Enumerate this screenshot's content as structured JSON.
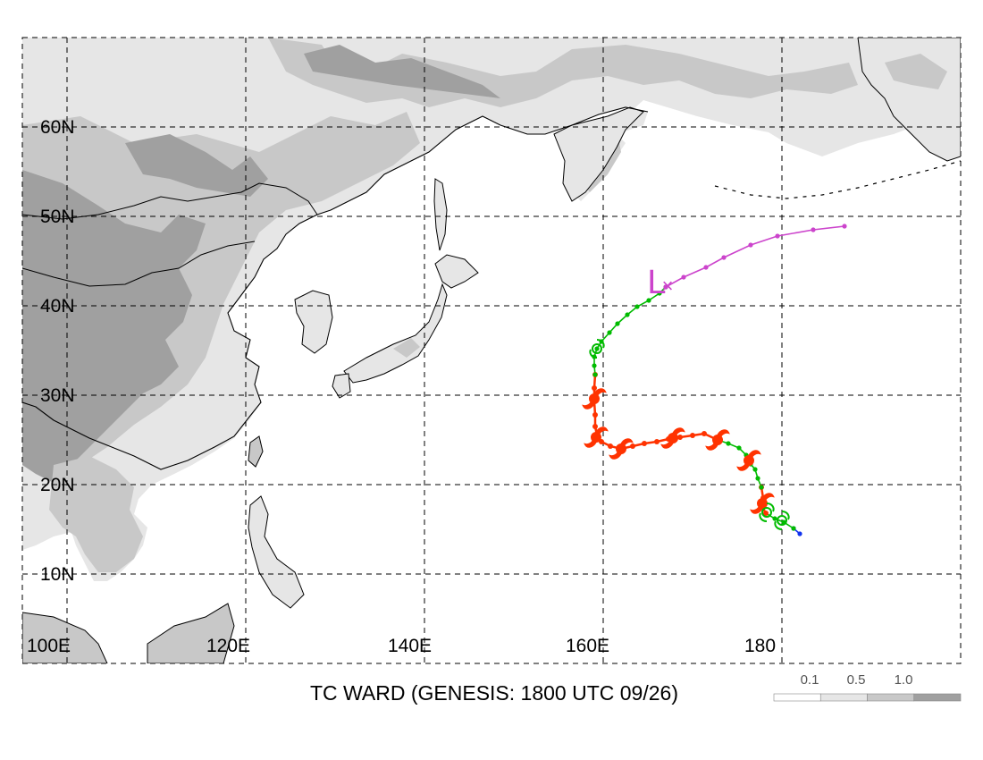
{
  "title": "TC WARD (GENESIS: 1800 UTC 09/26)",
  "lat_labels": [
    "60N",
    "50N",
    "40N",
    "30N",
    "20N",
    "10N"
  ],
  "lon_labels": [
    "100E",
    "120E",
    "140E",
    "160E",
    "180"
  ],
  "legend": {
    "ticks": [
      "0.1",
      "0.5",
      "1.0"
    ],
    "colors": [
      "#ffffff",
      "#e6e6e6",
      "#c8c8c8",
      "#a0a0a0"
    ]
  },
  "colors": {
    "land_light": "#e6e6e6",
    "land_mid": "#c8c8c8",
    "land_dark": "#a0a0a0",
    "track_red": "#ff3300",
    "track_green": "#00bb00",
    "track_magenta": "#cc44cc",
    "track_blue": "#1133ee"
  },
  "track_segments": [
    {
      "stage": "depression",
      "color": "#1133ee",
      "points": [
        [
          182.0,
          14.5
        ],
        [
          181.3,
          15.1
        ]
      ]
    },
    {
      "stage": "tropical-storm",
      "color": "#00bb00",
      "points": [
        [
          181.3,
          15.1
        ],
        [
          180.2,
          15.8
        ],
        [
          179.2,
          16.2
        ],
        [
          178.2,
          16.8
        ]
      ]
    },
    {
      "stage": "typhoon",
      "color": "#ff3300",
      "points": [
        [
          178.2,
          16.8
        ],
        [
          177.8,
          17.5
        ],
        [
          177.9,
          18.5
        ],
        [
          177.7,
          19.7
        ]
      ]
    },
    {
      "stage": "tropical-storm",
      "color": "#00bb00",
      "points": [
        [
          177.7,
          19.7
        ],
        [
          177.3,
          20.7
        ],
        [
          177.0,
          21.7
        ],
        [
          176.5,
          22.3
        ],
        [
          176.0,
          23.3
        ],
        [
          175.2,
          24.1
        ],
        [
          174.0,
          24.6
        ],
        [
          172.8,
          25.0
        ]
      ]
    },
    {
      "stage": "typhoon",
      "color": "#ff3300",
      "points": [
        [
          172.8,
          25.0
        ],
        [
          171.3,
          25.7
        ],
        [
          170.0,
          25.5
        ],
        [
          168.6,
          25.3
        ],
        [
          167.3,
          25.1
        ],
        [
          166.0,
          24.8
        ],
        [
          164.6,
          24.6
        ],
        [
          163.3,
          24.3
        ],
        [
          162.0,
          24.0
        ],
        [
          160.8,
          24.3
        ],
        [
          159.8,
          24.8
        ],
        [
          159.3,
          25.5
        ],
        [
          159.1,
          26.5
        ],
        [
          159.1,
          27.8
        ],
        [
          159.0,
          29.3
        ],
        [
          159.0,
          30.8
        ],
        [
          159.1,
          32.3
        ]
      ]
    },
    {
      "stage": "tropical-storm",
      "color": "#00bb00",
      "points": [
        [
          159.1,
          32.3
        ],
        [
          159.0,
          33.3
        ],
        [
          159.0,
          34.3
        ],
        [
          159.3,
          35.2
        ],
        [
          159.8,
          36.0
        ],
        [
          160.7,
          37.0
        ],
        [
          161.6,
          38.0
        ],
        [
          162.7,
          39.0
        ],
        [
          163.8,
          39.9
        ],
        [
          165.1,
          40.6
        ],
        [
          166.3,
          41.4
        ],
        [
          167.0,
          42.1
        ]
      ]
    },
    {
      "stage": "extratropical",
      "color": "#cc44cc",
      "points": [
        [
          167.0,
          42.1
        ],
        [
          169.0,
          43.2
        ],
        [
          171.5,
          44.3
        ],
        [
          173.5,
          45.4
        ],
        [
          176.5,
          46.8
        ],
        [
          179.5,
          47.8
        ],
        [
          183.5,
          48.5
        ],
        [
          187.0,
          48.9
        ]
      ]
    }
  ],
  "storm_markers": [
    {
      "type": "typhoon",
      "lon": 177.8,
      "lat": 17.9
    },
    {
      "type": "typhoon",
      "lon": 176.3,
      "lat": 22.7
    },
    {
      "type": "typhoon",
      "lon": 172.8,
      "lat": 25.0
    },
    {
      "type": "typhoon",
      "lon": 167.8,
      "lat": 25.2
    },
    {
      "type": "typhoon",
      "lon": 162.0,
      "lat": 24.0
    },
    {
      "type": "typhoon",
      "lon": 159.2,
      "lat": 25.3
    },
    {
      "type": "typhoon",
      "lon": 159.0,
      "lat": 29.6
    },
    {
      "type": "storm",
      "lon": 159.3,
      "lat": 35.2
    },
    {
      "type": "storm",
      "lon": 180.0,
      "lat": 16.0
    },
    {
      "type": "storm",
      "lon": 178.3,
      "lat": 16.9
    }
  ],
  "extratropical_marker": {
    "symbol": "L",
    "lon": 166.6,
    "lat": 42.8
  },
  "transition_marker": {
    "symbol": "×",
    "lon": 167.0,
    "lat": 42.1
  }
}
